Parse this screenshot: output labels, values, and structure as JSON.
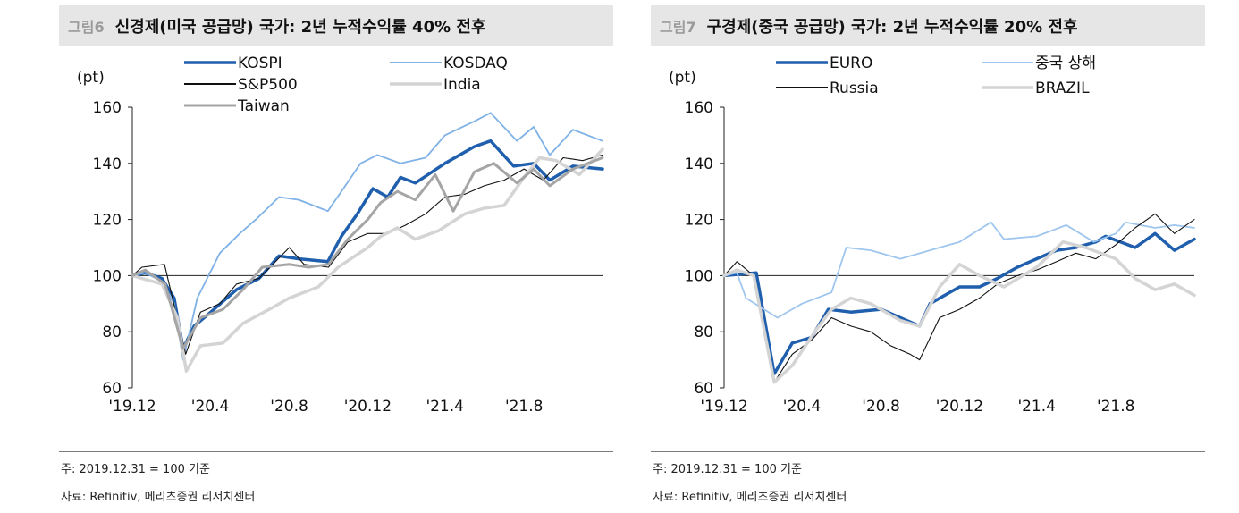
{
  "panels": [
    {
      "figure_no": "그림6",
      "title": "신경제(미국 공급망) 국가: 2년 누적수익률 40% 전후",
      "note": "주: 2019.12.31 = 100 기준",
      "source": "자료: Refinitiv, 메리츠증권 리서치센터"
    },
    {
      "figure_no": "그림7",
      "title": "구경제(중국 공급망) 국가: 2년 누적수익률 20% 전후",
      "note": "주: 2019.12.31 = 100 기준",
      "source": "자료: Refinitiv, 메리츠증권 리서치센터"
    }
  ],
  "chart_data": [
    {
      "type": "line",
      "title": "신경제(미국 공급망) 국가: 2년 누적수익률 40% 전후",
      "ylabel": "(pt)",
      "ylim": [
        60,
        160
      ],
      "yticks": [
        "60",
        "80",
        "100",
        "120",
        "140",
        "160"
      ],
      "x_domain": [
        "2019-12-31",
        "2021-12-31"
      ],
      "xtick_labels": [
        {
          "date": "2019-12-31",
          "label": "'19.12"
        },
        {
          "date": "2020-04-30",
          "label": "'20.4"
        },
        {
          "date": "2020-08-31",
          "label": "'20.8"
        },
        {
          "date": "2020-12-31",
          "label": "'20.12"
        },
        {
          "date": "2021-04-30",
          "label": "'21.4"
        },
        {
          "date": "2021-08-31",
          "label": "'21.8"
        }
      ],
      "grid": false,
      "legend_position": "top",
      "series": [
        {
          "name": "KOSPI",
          "color": "#1f5fad",
          "width": 3.5,
          "points": [
            [
              "2019-12-31",
              100
            ],
            [
              "2020-01-20",
              101
            ],
            [
              "2020-02-15",
              99
            ],
            [
              "2020-03-05",
              92
            ],
            [
              "2020-03-19",
              74
            ],
            [
              "2020-04-05",
              82
            ],
            [
              "2020-05-01",
              87
            ],
            [
              "2020-06-10",
              95
            ],
            [
              "2020-07-15",
              99
            ],
            [
              "2020-08-15",
              107
            ],
            [
              "2020-09-15",
              106
            ],
            [
              "2020-10-30",
              105
            ],
            [
              "2020-11-20",
              114
            ],
            [
              "2020-12-15",
              122
            ],
            [
              "2021-01-08",
              131
            ],
            [
              "2021-01-31",
              128
            ],
            [
              "2021-02-20",
              135
            ],
            [
              "2021-03-15",
              133
            ],
            [
              "2021-04-30",
              140
            ],
            [
              "2021-06-15",
              146
            ],
            [
              "2021-07-10",
              148
            ],
            [
              "2021-08-15",
              139
            ],
            [
              "2021-09-15",
              140
            ],
            [
              "2021-10-10",
              134
            ],
            [
              "2021-11-15",
              139
            ],
            [
              "2021-12-31",
              138
            ]
          ]
        },
        {
          "name": "KOSDAQ",
          "color": "#7fb2e6",
          "width": 1.8,
          "points": [
            [
              "2019-12-31",
              100
            ],
            [
              "2020-01-20",
              101
            ],
            [
              "2020-02-15",
              98
            ],
            [
              "2020-03-05",
              90
            ],
            [
              "2020-03-19",
              70
            ],
            [
              "2020-04-10",
              92
            ],
            [
              "2020-05-15",
              108
            ],
            [
              "2020-06-15",
              115
            ],
            [
              "2020-07-10",
              120
            ],
            [
              "2020-08-15",
              128
            ],
            [
              "2020-09-15",
              127
            ],
            [
              "2020-10-30",
              123
            ],
            [
              "2020-11-20",
              130
            ],
            [
              "2020-12-20",
              140
            ],
            [
              "2021-01-15",
              143
            ],
            [
              "2021-02-20",
              140
            ],
            [
              "2021-03-31",
              142
            ],
            [
              "2021-04-30",
              150
            ],
            [
              "2021-06-15",
              155
            ],
            [
              "2021-07-10",
              158
            ],
            [
              "2021-08-20",
              148
            ],
            [
              "2021-09-15",
              153
            ],
            [
              "2021-10-10",
              143
            ],
            [
              "2021-11-15",
              152
            ],
            [
              "2021-12-31",
              148
            ]
          ]
        },
        {
          "name": "S&P500",
          "color": "#111111",
          "width": 1.1,
          "points": [
            [
              "2019-12-31",
              100
            ],
            [
              "2020-01-15",
              103
            ],
            [
              "2020-02-19",
              104
            ],
            [
              "2020-03-23",
              72
            ],
            [
              "2020-04-15",
              87
            ],
            [
              "2020-05-15",
              90
            ],
            [
              "2020-06-10",
              97
            ],
            [
              "2020-07-15",
              99
            ],
            [
              "2020-08-31",
              110
            ],
            [
              "2020-09-23",
              104
            ],
            [
              "2020-10-31",
              103
            ],
            [
              "2020-11-30",
              112
            ],
            [
              "2020-12-31",
              115
            ],
            [
              "2021-01-31",
              115
            ],
            [
              "2021-02-28",
              118
            ],
            [
              "2021-03-31",
              122
            ],
            [
              "2021-04-30",
              128
            ],
            [
              "2021-05-31",
              129
            ],
            [
              "2021-06-30",
              132
            ],
            [
              "2021-07-31",
              134
            ],
            [
              "2021-08-31",
              138
            ],
            [
              "2021-09-30",
              134
            ],
            [
              "2021-10-31",
              142
            ],
            [
              "2021-11-30",
              141
            ],
            [
              "2021-12-31",
              143
            ]
          ]
        },
        {
          "name": "India",
          "color": "#d4d4d4",
          "width": 3.5,
          "points": [
            [
              "2019-12-31",
              100
            ],
            [
              "2020-02-15",
              97
            ],
            [
              "2020-03-10",
              85
            ],
            [
              "2020-03-24",
              66
            ],
            [
              "2020-04-15",
              75
            ],
            [
              "2020-05-20",
              76
            ],
            [
              "2020-06-20",
              83
            ],
            [
              "2020-07-31",
              88
            ],
            [
              "2020-08-31",
              92
            ],
            [
              "2020-10-15",
              96
            ],
            [
              "2020-11-15",
              103
            ],
            [
              "2020-12-31",
              110
            ],
            [
              "2021-01-20",
              114
            ],
            [
              "2021-02-15",
              117
            ],
            [
              "2021-03-15",
              113
            ],
            [
              "2021-04-20",
              116
            ],
            [
              "2021-05-31",
              122
            ],
            [
              "2021-06-30",
              124
            ],
            [
              "2021-07-31",
              125
            ],
            [
              "2021-08-31",
              135
            ],
            [
              "2021-09-24",
              142
            ],
            [
              "2021-10-20",
              141
            ],
            [
              "2021-11-25",
              136
            ],
            [
              "2021-12-31",
              145
            ]
          ]
        },
        {
          "name": "Taiwan",
          "color": "#a5a5a5",
          "width": 3,
          "points": [
            [
              "2019-12-31",
              100
            ],
            [
              "2020-01-20",
              102
            ],
            [
              "2020-02-20",
              97
            ],
            [
              "2020-03-19",
              74
            ],
            [
              "2020-04-15",
              85
            ],
            [
              "2020-05-20",
              88
            ],
            [
              "2020-06-20",
              95
            ],
            [
              "2020-07-20",
              103
            ],
            [
              "2020-08-31",
              104
            ],
            [
              "2020-09-30",
              103
            ],
            [
              "2020-10-31",
              104
            ],
            [
              "2020-11-30",
              113
            ],
            [
              "2020-12-31",
              120
            ],
            [
              "2021-01-20",
              126
            ],
            [
              "2021-02-15",
              130
            ],
            [
              "2021-03-15",
              127
            ],
            [
              "2021-04-15",
              136
            ],
            [
              "2021-05-13",
              123
            ],
            [
              "2021-06-15",
              137
            ],
            [
              "2021-07-15",
              140
            ],
            [
              "2021-08-20",
              133
            ],
            [
              "2021-09-15",
              138
            ],
            [
              "2021-10-10",
              132
            ],
            [
              "2021-11-15",
              138
            ],
            [
              "2021-12-31",
              142
            ]
          ]
        }
      ]
    },
    {
      "type": "line",
      "title": "구경제(중국 공급망) 국가: 2년 누적수익률 20% 전후",
      "ylabel": "(pt)",
      "ylim": [
        60,
        160
      ],
      "yticks": [
        "60",
        "80",
        "100",
        "120",
        "140",
        "160"
      ],
      "x_domain": [
        "2019-12-31",
        "2021-12-31"
      ],
      "xtick_labels": [
        {
          "date": "2019-12-31",
          "label": "'19.12"
        },
        {
          "date": "2020-04-30",
          "label": "'20.4"
        },
        {
          "date": "2020-08-31",
          "label": "'20.8"
        },
        {
          "date": "2020-12-31",
          "label": "'20.12"
        },
        {
          "date": "2021-04-30",
          "label": "'21.4"
        },
        {
          "date": "2021-08-31",
          "label": "'21.8"
        }
      ],
      "grid": false,
      "legend_position": "top",
      "series": [
        {
          "name": "EURO",
          "color": "#1f5fad",
          "width": 3.5,
          "points": [
            [
              "2019-12-31",
              100
            ],
            [
              "2020-02-19",
              101
            ],
            [
              "2020-03-18",
              65
            ],
            [
              "2020-04-15",
              76
            ],
            [
              "2020-05-15",
              78
            ],
            [
              "2020-06-10",
              88
            ],
            [
              "2020-07-15",
              87
            ],
            [
              "2020-08-31",
              88
            ],
            [
              "2020-09-30",
              85
            ],
            [
              "2020-10-30",
              82
            ],
            [
              "2020-11-15",
              90
            ],
            [
              "2020-12-31",
              96
            ],
            [
              "2021-01-31",
              96
            ],
            [
              "2021-02-28",
              99
            ],
            [
              "2021-03-31",
              103
            ],
            [
              "2021-04-30",
              106
            ],
            [
              "2021-05-31",
              109
            ],
            [
              "2021-06-30",
              110
            ],
            [
              "2021-07-31",
              112
            ],
            [
              "2021-08-15",
              114
            ],
            [
              "2021-09-30",
              110
            ],
            [
              "2021-10-31",
              115
            ],
            [
              "2021-11-30",
              109
            ],
            [
              "2021-12-31",
              113
            ]
          ]
        },
        {
          "name": "중국 상해",
          "color": "#9ec6ee",
          "width": 1.8,
          "points": [
            [
              "2019-12-31",
              100
            ],
            [
              "2020-01-20",
              101
            ],
            [
              "2020-02-03",
              92
            ],
            [
              "2020-03-23",
              85
            ],
            [
              "2020-04-30",
              90
            ],
            [
              "2020-06-15",
              94
            ],
            [
              "2020-07-08",
              110
            ],
            [
              "2020-08-15",
              109
            ],
            [
              "2020-09-30",
              106
            ],
            [
              "2020-10-31",
              108
            ],
            [
              "2020-11-30",
              110
            ],
            [
              "2020-12-31",
              112
            ],
            [
              "2021-02-18",
              119
            ],
            [
              "2021-03-10",
              113
            ],
            [
              "2021-04-30",
              114
            ],
            [
              "2021-06-15",
              118
            ],
            [
              "2021-07-28",
              112
            ],
            [
              "2021-08-31",
              115
            ],
            [
              "2021-09-15",
              119
            ],
            [
              "2021-10-31",
              117
            ],
            [
              "2021-11-30",
              118
            ],
            [
              "2021-12-31",
              117
            ]
          ]
        },
        {
          "name": "Russia",
          "color": "#111111",
          "width": 1.1,
          "points": [
            [
              "2019-12-31",
              100
            ],
            [
              "2020-01-20",
              105
            ],
            [
              "2020-02-15",
              100
            ],
            [
              "2020-03-18",
              62
            ],
            [
              "2020-04-15",
              72
            ],
            [
              "2020-05-15",
              77
            ],
            [
              "2020-06-15",
              85
            ],
            [
              "2020-07-15",
              82
            ],
            [
              "2020-08-15",
              80
            ],
            [
              "2020-09-15",
              75
            ],
            [
              "2020-10-15",
              72
            ],
            [
              "2020-10-30",
              70
            ],
            [
              "2020-11-30",
              85
            ],
            [
              "2020-12-31",
              88
            ],
            [
              "2021-01-31",
              92
            ],
            [
              "2021-02-28",
              97
            ],
            [
              "2021-03-31",
              100
            ],
            [
              "2021-04-30",
              102
            ],
            [
              "2021-05-31",
              105
            ],
            [
              "2021-06-30",
              108
            ],
            [
              "2021-07-31",
              106
            ],
            [
              "2021-08-31",
              111
            ],
            [
              "2021-09-30",
              117
            ],
            [
              "2021-10-31",
              122
            ],
            [
              "2021-11-30",
              115
            ],
            [
              "2021-12-31",
              120
            ]
          ]
        },
        {
          "name": "BRAZIL",
          "color": "#d4d4d4",
          "width": 3.5,
          "points": [
            [
              "2019-12-31",
              100
            ],
            [
              "2020-01-20",
              102
            ],
            [
              "2020-02-15",
              100
            ],
            [
              "2020-03-18",
              62
            ],
            [
              "2020-04-15",
              68
            ],
            [
              "2020-05-20",
              80
            ],
            [
              "2020-06-15",
              88
            ],
            [
              "2020-07-15",
              92
            ],
            [
              "2020-08-15",
              90
            ],
            [
              "2020-09-30",
              84
            ],
            [
              "2020-10-30",
              82
            ],
            [
              "2020-11-30",
              96
            ],
            [
              "2020-12-31",
              104
            ],
            [
              "2021-01-31",
              100
            ],
            [
              "2021-03-10",
              96
            ],
            [
              "2021-04-30",
              103
            ],
            [
              "2021-06-10",
              112
            ],
            [
              "2021-07-15",
              110
            ],
            [
              "2021-08-31",
              106
            ],
            [
              "2021-09-30",
              99
            ],
            [
              "2021-10-31",
              95
            ],
            [
              "2021-11-30",
              97
            ],
            [
              "2021-12-31",
              93
            ]
          ]
        }
      ]
    }
  ]
}
